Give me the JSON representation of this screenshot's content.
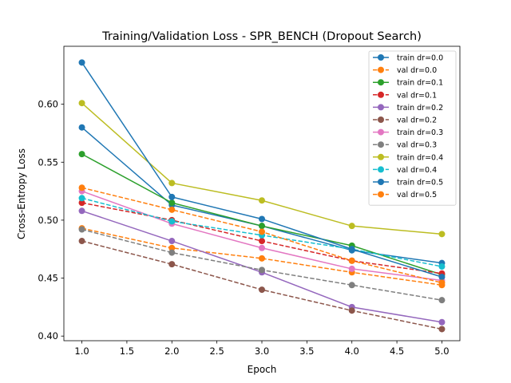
{
  "chart_data": {
    "type": "line",
    "title": "Training/Validation Loss - SPR_BENCH (Dropout Search)",
    "xlabel": "Epoch",
    "ylabel": "Cross-Entropy Loss",
    "xlim": [
      0.8,
      5.2
    ],
    "ylim": [
      0.396,
      0.65
    ],
    "xticks": [
      "1.0",
      "1.5",
      "2.0",
      "2.5",
      "3.0",
      "3.5",
      "4.0",
      "4.5",
      "5.0"
    ],
    "yticks": [
      "0.40",
      "0.45",
      "0.50",
      "0.55",
      "0.60"
    ],
    "grid": false,
    "legend_position": "top-right",
    "x": [
      1,
      2,
      3,
      4,
      5
    ],
    "series": [
      {
        "name": "train dr=0.0",
        "color": "#1f77b4",
        "style": "solid",
        "values": [
          0.58,
          0.513,
          0.495,
          0.474,
          0.463
        ]
      },
      {
        "name": "val dr=0.0",
        "color": "#ff7f0e",
        "style": "dashed",
        "values": [
          0.493,
          0.476,
          0.467,
          0.455,
          0.444
        ]
      },
      {
        "name": "train dr=0.1",
        "color": "#2ca02c",
        "style": "solid",
        "values": [
          0.557,
          0.515,
          0.495,
          0.478,
          0.453
        ]
      },
      {
        "name": "val dr=0.1",
        "color": "#d62728",
        "style": "dashed",
        "values": [
          0.515,
          0.5,
          0.482,
          0.465,
          0.454
        ]
      },
      {
        "name": "train dr=0.2",
        "color": "#9467bd",
        "style": "solid",
        "values": [
          0.508,
          0.482,
          0.455,
          0.425,
          0.412
        ]
      },
      {
        "name": "val dr=0.2",
        "color": "#8c564b",
        "style": "dashed",
        "values": [
          0.482,
          0.462,
          0.44,
          0.422,
          0.406
        ]
      },
      {
        "name": "train dr=0.3",
        "color": "#e377c2",
        "style": "solid",
        "values": [
          0.525,
          0.497,
          0.476,
          0.458,
          0.448
        ]
      },
      {
        "name": "val dr=0.3",
        "color": "#7f7f7f",
        "style": "dashed",
        "values": [
          0.492,
          0.472,
          0.457,
          0.444,
          0.431
        ]
      },
      {
        "name": "train dr=0.4",
        "color": "#bcbd22",
        "style": "solid",
        "values": [
          0.601,
          0.532,
          0.517,
          0.495,
          0.488
        ]
      },
      {
        "name": "val dr=0.4",
        "color": "#17becf",
        "style": "dashed",
        "values": [
          0.519,
          0.499,
          0.487,
          0.475,
          0.46
        ]
      },
      {
        "name": "train dr=0.5",
        "color": "#1f77b4",
        "style": "solid",
        "values": [
          0.636,
          0.52,
          0.501,
          0.475,
          0.451
        ]
      },
      {
        "name": "val dr=0.5",
        "color": "#ff7f0e",
        "style": "dashed",
        "values": [
          0.528,
          0.509,
          0.49,
          0.465,
          0.446
        ]
      }
    ]
  }
}
